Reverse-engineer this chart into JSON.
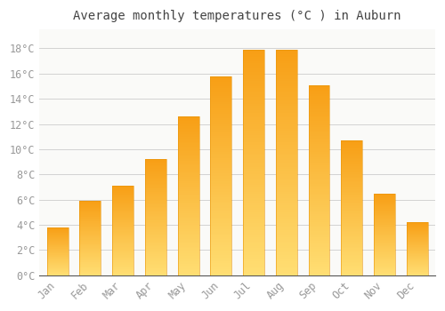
{
  "title": "Average monthly temperatures (°C ) in Auburn",
  "months": [
    "Jan",
    "Feb",
    "Mar",
    "Apr",
    "May",
    "Jun",
    "Jul",
    "Aug",
    "Sep",
    "Oct",
    "Nov",
    "Dec"
  ],
  "values": [
    3.8,
    5.9,
    7.1,
    9.2,
    12.6,
    15.8,
    17.9,
    17.9,
    15.1,
    10.7,
    6.5,
    4.2
  ],
  "bar_color_top": "#F5A623",
  "bar_color_bottom": "#FFD080",
  "bar_edge_color": "#E8940A",
  "background_color": "#FFFFFF",
  "plot_bg_color": "#FAFAF8",
  "grid_color": "#CCCCCC",
  "tick_label_color": "#999999",
  "title_color": "#444444",
  "ylim": [
    0,
    19.5
  ],
  "yticks": [
    0,
    2,
    4,
    6,
    8,
    10,
    12,
    14,
    16,
    18
  ],
  "title_fontsize": 10,
  "tick_fontsize": 8.5,
  "font_family": "monospace",
  "bar_width": 0.65
}
